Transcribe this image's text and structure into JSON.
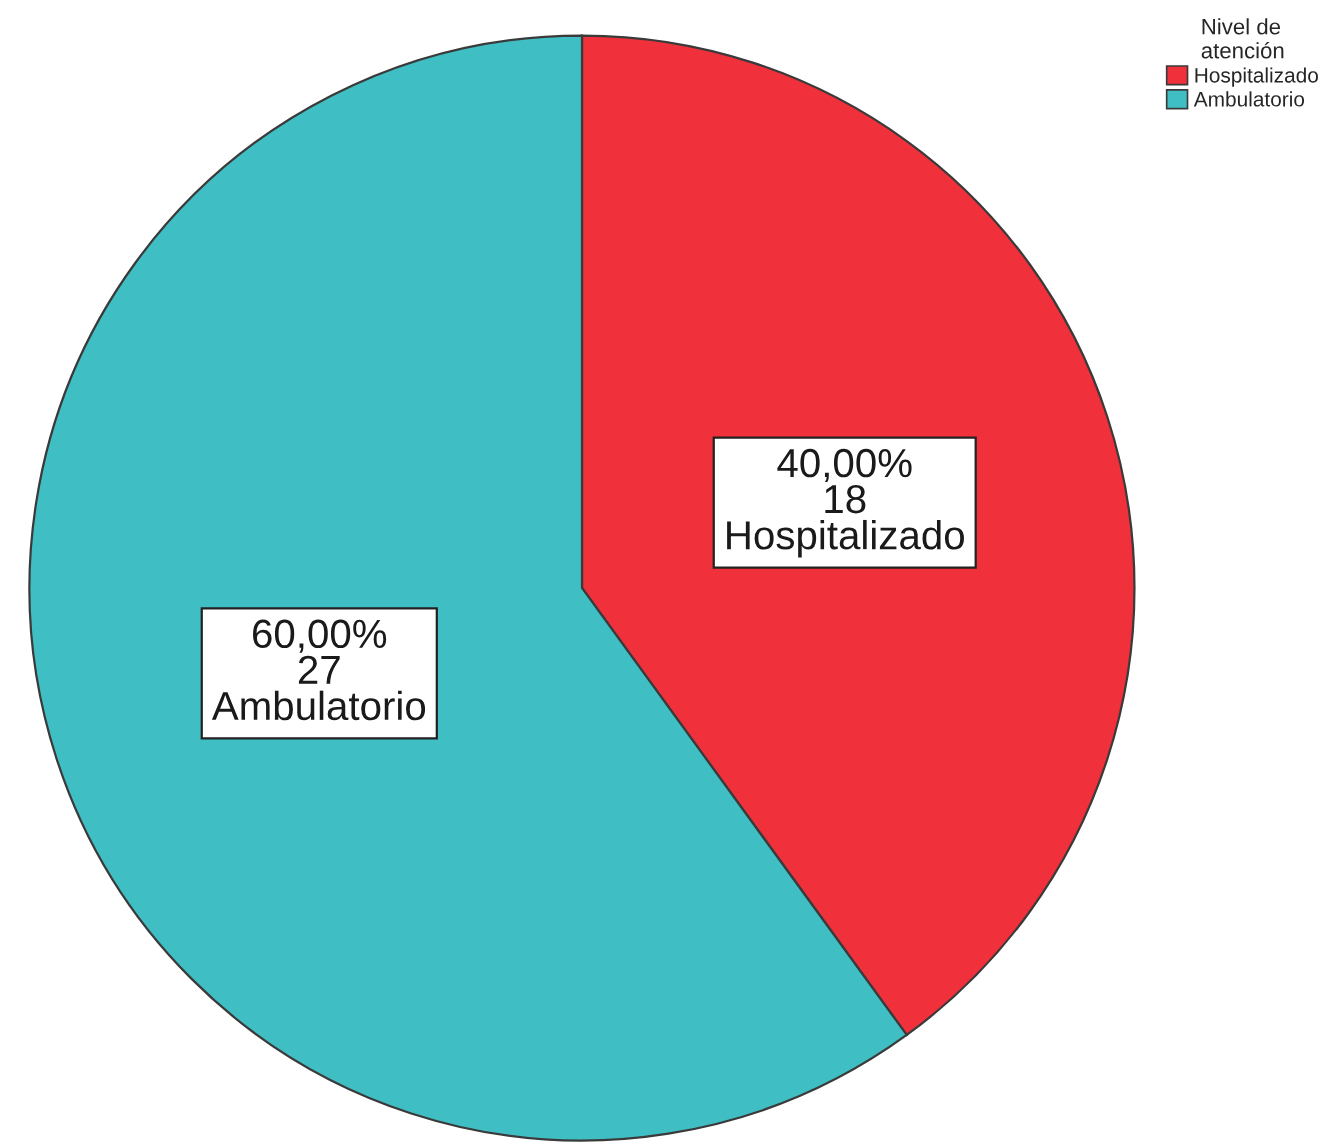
{
  "chart_data": {
    "type": "pie",
    "categories": [
      "Hospitalizado",
      "Ambulatorio"
    ],
    "values": [
      18,
      27
    ],
    "colors": [
      "#f0303a",
      "#3fbfc4"
    ],
    "value_labels": [
      "40,00%\n18\nHospitalizado",
      "60,00%\n27\nAmbulatorio"
    ],
    "legend_title": "Nivel de\natención",
    "legend": "top right"
  }
}
